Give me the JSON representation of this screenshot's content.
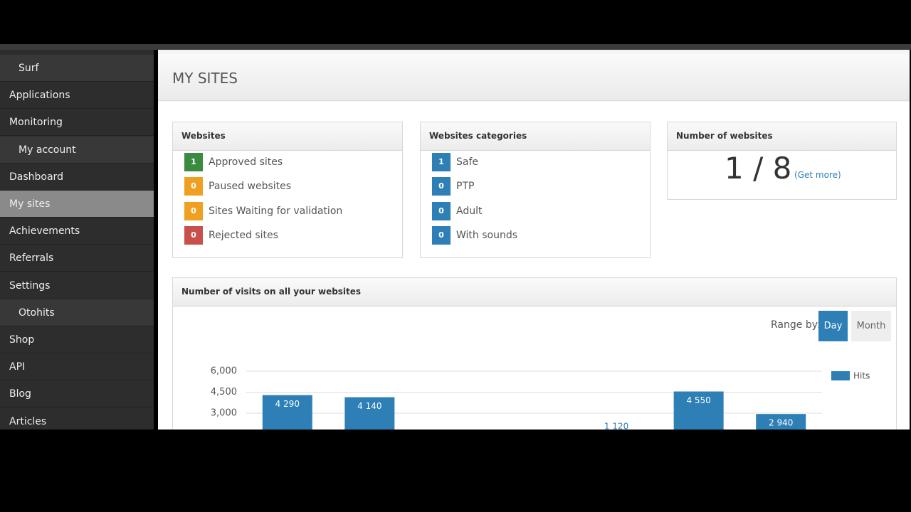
{
  "sidebar": {
    "items": [
      {
        "label": "Surf",
        "section": true
      },
      {
        "label": "Applications",
        "section": false
      },
      {
        "label": "Monitoring",
        "section": false
      },
      {
        "label": "My account",
        "section": true
      },
      {
        "label": "Dashboard",
        "section": false
      },
      {
        "label": "My sites",
        "section": false,
        "active": true
      },
      {
        "label": "Achievements",
        "section": false
      },
      {
        "label": "Referrals",
        "section": false
      },
      {
        "label": "Settings",
        "section": false
      },
      {
        "label": "Otohits",
        "section": true
      },
      {
        "label": "Shop",
        "section": false
      },
      {
        "label": "API",
        "section": false
      },
      {
        "label": "Blog",
        "section": false
      },
      {
        "label": "Articles",
        "section": false
      }
    ]
  },
  "header": {
    "title": "MY SITES"
  },
  "panels": [
    {
      "title": "Websites",
      "rows": [
        {
          "count": 1,
          "label": "Approved sites",
          "color": "#3a8a3f"
        },
        {
          "count": 0,
          "label": "Paused websites",
          "color": "#f0a020"
        },
        {
          "count": 0,
          "label": "Sites Waiting for validation",
          "color": "#f0a020"
        },
        {
          "count": 0,
          "label": "Rejected sites",
          "color": "#c9504a"
        }
      ]
    },
    {
      "title": "Websites categories",
      "rows": [
        {
          "count": 1,
          "label": "Safe",
          "color": "#2e7fb5"
        },
        {
          "count": 0,
          "label": "PTP",
          "color": "#2e7fb5"
        },
        {
          "count": 0,
          "label": "Adult",
          "color": "#2e7fb5"
        },
        {
          "count": 0,
          "label": "With sounds",
          "color": "#2e7fb5"
        }
      ]
    }
  ],
  "number_panel": {
    "title": "Number of websites",
    "count": "1 / 8",
    "link": "(Get more)"
  },
  "chart_panel": {
    "title": "Number of visits on all your websites",
    "range_label": "Range by:",
    "buttons": [
      {
        "label": "Day",
        "active": true
      },
      {
        "label": "Month",
        "active": false
      }
    ]
  },
  "chart_data": {
    "type": "bar",
    "categories": [
      null,
      null,
      null,
      null,
      null,
      null,
      null
    ],
    "series": [
      {
        "name": "Hits",
        "color": "#2e7fb5",
        "values": [
          4290,
          4140,
          null,
          null,
          1120,
          4550,
          2940
        ],
        "value_labels": [
          "4 290",
          "4 140",
          null,
          null,
          "1 120",
          "4 550",
          "2 940"
        ]
      }
    ],
    "ylim": [
      0,
      6000
    ],
    "yticks": [
      {
        "value": 3000,
        "label": "3,000"
      },
      {
        "value": 4500,
        "label": "4,500"
      },
      {
        "value": 6000,
        "label": "6,000"
      }
    ],
    "grid": true
  }
}
